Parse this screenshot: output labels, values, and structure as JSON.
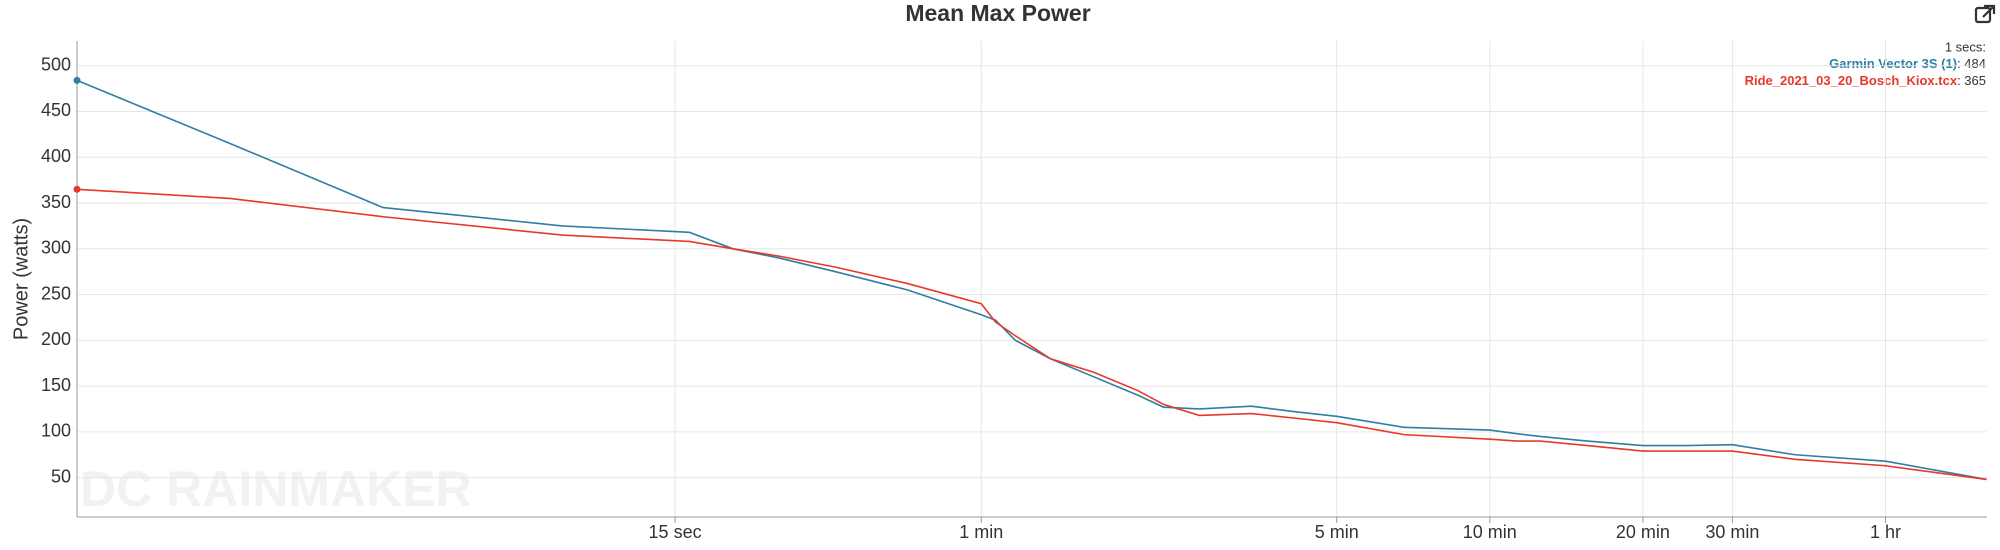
{
  "chart_data": {
    "type": "line",
    "title": "Mean Max Power",
    "y_label": "Power (watts)",
    "watermark": "DC RAINMAKER",
    "hover_label": "1 secs:",
    "x_log": true,
    "grid": true,
    "xlim": [
      1,
      5700
    ],
    "ylim": [
      7,
      527
    ],
    "xticks": [
      {
        "value": 15,
        "label": "15 sec"
      },
      {
        "value": 60,
        "label": "1 min"
      },
      {
        "value": 300,
        "label": "5 min"
      },
      {
        "value": 600,
        "label": "10 min"
      },
      {
        "value": 1200,
        "label": "20 min"
      },
      {
        "value": 1800,
        "label": "30 min"
      },
      {
        "value": 3600,
        "label": "1 hr"
      }
    ],
    "yticks": [
      50,
      100,
      150,
      200,
      250,
      300,
      350,
      400,
      450,
      500
    ],
    "x": [
      1,
      2,
      4,
      9,
      16,
      19.5,
      24,
      31,
      43,
      60,
      64,
      70,
      82,
      100,
      122,
      137,
      161,
      204,
      248,
      300,
      407,
      600,
      678,
      754,
      933,
      1200,
      1464,
      1800,
      2390,
      3600,
      5690
    ],
    "series": [
      {
        "name": "Garmin Vector 3S (1)",
        "color": "#2f7ea3",
        "values": [
          484,
          415,
          345,
          325,
          318,
          300,
          290,
          275,
          255,
          228,
          222,
          200,
          180,
          160,
          140,
          127,
          125,
          128,
          122,
          117,
          105,
          102,
          98,
          95,
          90,
          85,
          85,
          86,
          75,
          68,
          48
        ]
      },
      {
        "name": "Ride_2021_03_20_Bosch_Kiox.tcx",
        "color": "#e8382a",
        "values": [
          365,
          355,
          335,
          315,
          308,
          300,
          292,
          280,
          262,
          240,
          220,
          205,
          180,
          165,
          145,
          130,
          118,
          120,
          115,
          110,
          97,
          92,
          90,
          90,
          85,
          79,
          79,
          79,
          70,
          63,
          48
        ]
      }
    ]
  }
}
